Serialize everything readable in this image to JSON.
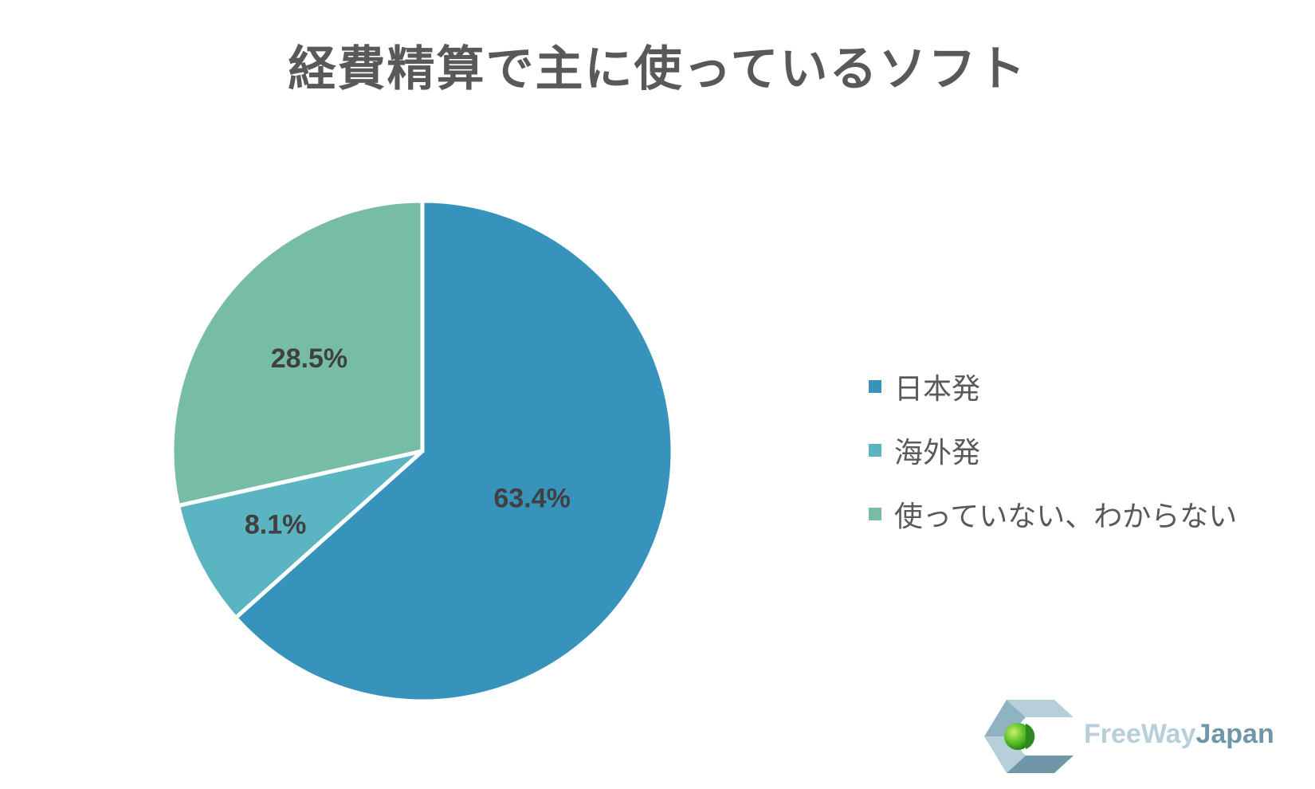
{
  "chart_data": {
    "type": "pie",
    "title": "経費精算で主に使っているソフト",
    "slices": [
      {
        "name": "日本発",
        "value": 63.4,
        "label": "63.4%",
        "color": "#3793bc"
      },
      {
        "name": "海外発",
        "value": 8.1,
        "label": "8.1%",
        "color": "#5ab4c1"
      },
      {
        "name": "使っていない、わからない",
        "value": 28.5,
        "label": "28.5%",
        "color": "#77bca7"
      }
    ],
    "start_angle": "12 o'clock",
    "direction": "clockwise",
    "legend_position": "right"
  },
  "logo": {
    "text_free": "FreeWay",
    "text_japan": "Japan",
    "colors": {
      "light": "#b7cfd8",
      "dark": "#6f97a8",
      "sphere": "#5bbf2a"
    }
  }
}
